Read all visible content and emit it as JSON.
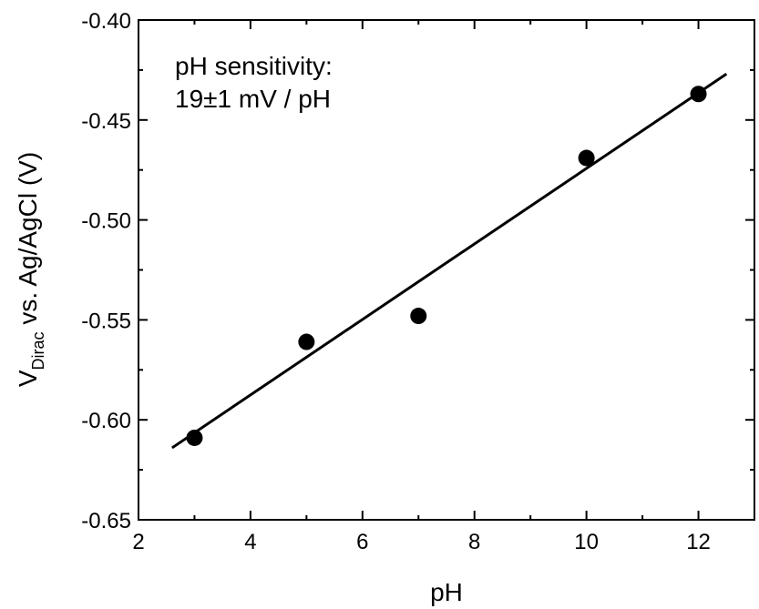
{
  "chart_data": {
    "type": "scatter",
    "xlabel": "pH",
    "ylabel": {
      "main": "V",
      "subscript": "Dirac",
      "rest": " vs. Ag/AgCl (V)"
    },
    "xlim": [
      2,
      13
    ],
    "ylim": [
      -0.65,
      -0.4
    ],
    "x_ticks": [
      2,
      4,
      6,
      8,
      10,
      12
    ],
    "x_tick_labels": [
      "2",
      "4",
      "6",
      "8",
      "10",
      "12"
    ],
    "y_ticks": [
      -0.65,
      -0.6,
      -0.55,
      -0.5,
      -0.45,
      -0.4
    ],
    "y_tick_labels": [
      "-0.65",
      "-0.60",
      "-0.55",
      "-0.50",
      "-0.45",
      "-0.40"
    ],
    "series": [
      {
        "x": [
          3,
          5,
          7,
          10,
          12
        ],
        "y": [
          -0.609,
          -0.561,
          -0.548,
          -0.469,
          -0.437
        ]
      }
    ],
    "fit_line": {
      "x": [
        2.6,
        12.5
      ],
      "y": [
        -0.614,
        -0.427
      ]
    },
    "annotation": [
      "pH sensitivity:",
      "19±1 mV / pH"
    ],
    "grid": false,
    "marker_color": "#000000",
    "line_color": "#000000"
  }
}
